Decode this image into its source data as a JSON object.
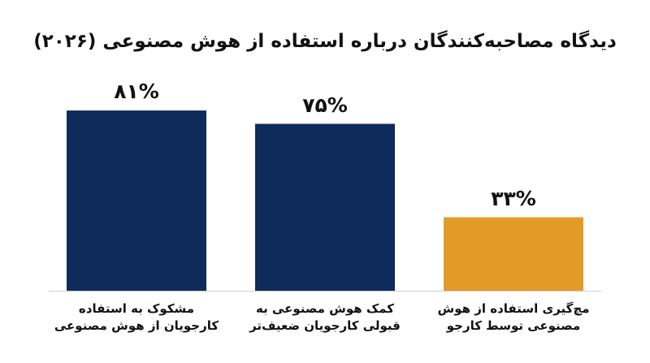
{
  "chart_data": {
    "type": "bar",
    "title": "دیدگاه مصاحبه‌کنندگان درباره استفاده از هوش مصنوعی (۲۰۲۶)",
    "categories": [
      "مشکوک به استفاده کارجویان از هوش مصنوعی",
      "کمک هوش مصنوعی به قبولی کارجویان ضعیف‌تر",
      "مچ‌گیری استفاده از هوش مصنوعی توسط کارجو"
    ],
    "values": [
      81,
      75,
      33
    ],
    "value_labels": [
      "۸۱%",
      "۷۵%",
      "۳۳%"
    ],
    "colors": [
      "#0f2b5b",
      "#0f2b5b",
      "#e39b28"
    ]
  }
}
